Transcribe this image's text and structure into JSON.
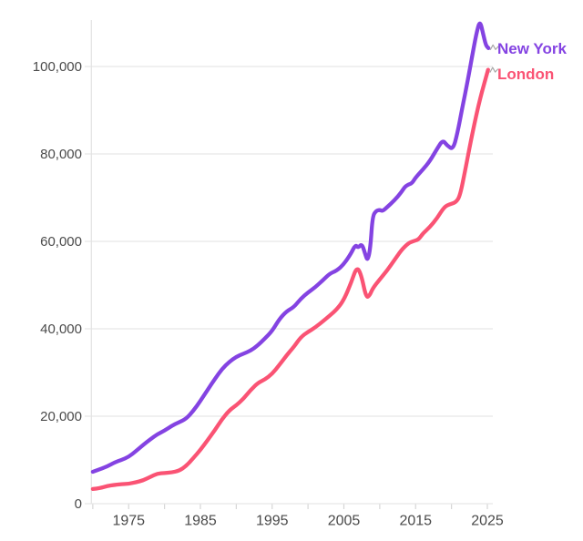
{
  "chart_data": {
    "type": "line",
    "title": "",
    "xlabel": "",
    "ylabel": "",
    "x_axis": {
      "range": [
        1969.85,
        2025.6
      ],
      "minor_tick_years": [
        1970,
        1975,
        1980,
        1985,
        1990,
        1995,
        2000,
        2005,
        2010,
        2015,
        2020,
        2025
      ],
      "labeled_ticks": [
        {
          "year": 1975,
          "label": "1975"
        },
        {
          "year": 1985,
          "label": "1985"
        },
        {
          "year": 1995,
          "label": "1995"
        },
        {
          "year": 2005,
          "label": "2005"
        },
        {
          "year": 2015,
          "label": "2015"
        },
        {
          "year": 2025,
          "label": "2025"
        }
      ]
    },
    "y_axis": {
      "range": [
        0,
        110400
      ],
      "grid": true,
      "ticks": [
        {
          "value": 0,
          "label": "0"
        },
        {
          "value": 20000,
          "label": "20,000"
        },
        {
          "value": 40000,
          "label": "40,000"
        },
        {
          "value": 60000,
          "label": "60,000"
        },
        {
          "value": 80000,
          "label": "80,000"
        },
        {
          "value": 100000,
          "label": "100,000"
        }
      ]
    },
    "legend_position": "right-of-line-ends",
    "series": [
      {
        "name": "New York",
        "color": "#8443e2",
        "points": [
          [
            1970,
            7300
          ],
          [
            1971,
            7900
          ],
          [
            1972,
            8500
          ],
          [
            1973,
            9400
          ],
          [
            1974,
            10000
          ],
          [
            1975,
            10700
          ],
          [
            1976,
            12000
          ],
          [
            1977,
            13400
          ],
          [
            1978,
            14700
          ],
          [
            1979,
            15900
          ],
          [
            1980,
            16700
          ],
          [
            1981,
            17800
          ],
          [
            1982,
            18600
          ],
          [
            1983,
            19400
          ],
          [
            1984,
            21200
          ],
          [
            1985,
            23500
          ],
          [
            1986,
            26000
          ],
          [
            1987,
            28500
          ],
          [
            1988,
            30800
          ],
          [
            1989,
            32400
          ],
          [
            1990,
            33600
          ],
          [
            1991,
            34300
          ],
          [
            1992,
            35000
          ],
          [
            1993,
            36200
          ],
          [
            1994,
            37800
          ],
          [
            1995,
            39500
          ],
          [
            1996,
            42200
          ],
          [
            1997,
            44000
          ],
          [
            1998,
            44900
          ],
          [
            1999,
            46900
          ],
          [
            2000,
            48300
          ],
          [
            2001,
            49500
          ],
          [
            2002,
            51000
          ],
          [
            2003,
            52600
          ],
          [
            2004,
            53300
          ],
          [
            2005,
            54800
          ],
          [
            2006,
            57200
          ],
          [
            2006.6,
            59200
          ],
          [
            2007,
            58500
          ],
          [
            2007.5,
            59500
          ],
          [
            2008,
            57000
          ],
          [
            2008.3,
            55500
          ],
          [
            2008.7,
            58500
          ],
          [
            2009,
            65800
          ],
          [
            2009.5,
            67000
          ],
          [
            2010,
            67200
          ],
          [
            2010.4,
            66900
          ],
          [
            2011,
            67800
          ],
          [
            2012,
            69300
          ],
          [
            2013,
            71200
          ],
          [
            2013.5,
            72500
          ],
          [
            2014,
            73000
          ],
          [
            2014.5,
            73300
          ],
          [
            2015,
            74600
          ],
          [
            2016,
            76400
          ],
          [
            2017,
            78400
          ],
          [
            2018,
            81200
          ],
          [
            2018.8,
            83200
          ],
          [
            2019.4,
            81900
          ],
          [
            2020.2,
            81000
          ],
          [
            2020.8,
            84500
          ],
          [
            2021.5,
            90500
          ],
          [
            2022.3,
            97000
          ],
          [
            2023,
            103500
          ],
          [
            2023.6,
            108500
          ],
          [
            2024,
            110400
          ],
          [
            2024.4,
            107500
          ],
          [
            2024.8,
            104800
          ],
          [
            2025.15,
            104200
          ]
        ]
      },
      {
        "name": "London",
        "color": "#fa5374",
        "points": [
          [
            1970,
            3350
          ],
          [
            1971,
            3550
          ],
          [
            1972,
            4050
          ],
          [
            1973,
            4300
          ],
          [
            1974,
            4450
          ],
          [
            1975,
            4550
          ],
          [
            1976,
            4900
          ],
          [
            1977,
            5300
          ],
          [
            1978,
            6100
          ],
          [
            1979,
            6900
          ],
          [
            1980,
            7000
          ],
          [
            1981,
            7150
          ],
          [
            1982,
            7500
          ],
          [
            1983,
            8600
          ],
          [
            1984,
            10400
          ],
          [
            1985,
            12300
          ],
          [
            1986,
            14500
          ],
          [
            1987,
            16800
          ],
          [
            1988,
            19300
          ],
          [
            1989,
            21300
          ],
          [
            1990,
            22500
          ],
          [
            1991,
            24000
          ],
          [
            1992,
            26000
          ],
          [
            1993,
            27600
          ],
          [
            1994,
            28400
          ],
          [
            1995,
            29700
          ],
          [
            1996,
            31700
          ],
          [
            1997,
            33900
          ],
          [
            1998,
            35800
          ],
          [
            1999,
            38100
          ],
          [
            2000,
            39300
          ],
          [
            2001,
            40300
          ],
          [
            2002,
            41600
          ],
          [
            2003,
            43000
          ],
          [
            2004,
            44400
          ],
          [
            2005,
            46600
          ],
          [
            2006,
            50500
          ],
          [
            2006.8,
            54200
          ],
          [
            2007.4,
            52500
          ],
          [
            2008.1,
            47100
          ],
          [
            2008.6,
            47600
          ],
          [
            2009,
            49200
          ],
          [
            2010,
            51300
          ],
          [
            2011,
            53300
          ],
          [
            2012,
            55600
          ],
          [
            2013,
            58000
          ],
          [
            2014,
            59600
          ],
          [
            2014.6,
            60000
          ],
          [
            2015.4,
            60400
          ],
          [
            2016,
            61800
          ],
          [
            2017,
            63300
          ],
          [
            2018,
            65300
          ],
          [
            2019,
            67900
          ],
          [
            2019.8,
            68500
          ],
          [
            2020.6,
            68900
          ],
          [
            2021.2,
            70400
          ],
          [
            2022,
            77000
          ],
          [
            2023,
            85500
          ],
          [
            2024,
            92800
          ],
          [
            2025.1,
            99250
          ]
        ]
      }
    ]
  },
  "colors": {
    "background": "#ffffff",
    "grid": "#e8e8e8",
    "axis_line": "#e4e4e4",
    "tick_mark": "#d6d6d6",
    "tick_label": "#4a4a4a",
    "connector": "#a8a8a8"
  }
}
